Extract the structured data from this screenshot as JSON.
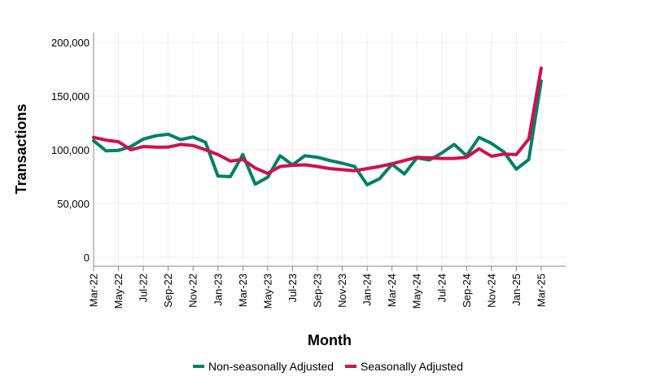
{
  "chart_data": {
    "type": "line",
    "xlabel": "Month",
    "ylabel": "Transactions",
    "ylim": [
      0,
      200000
    ],
    "y_ticks": [
      0,
      50000,
      100000,
      150000,
      200000
    ],
    "y_tick_labels": [
      "0",
      "50,000",
      "100,000",
      "150,000",
      "200,000"
    ],
    "x": [
      "Mar-22",
      "Apr-22",
      "May-22",
      "Jun-22",
      "Jul-22",
      "Aug-22",
      "Sep-22",
      "Oct-22",
      "Nov-22",
      "Dec-22",
      "Jan-23",
      "Feb-23",
      "Mar-23",
      "Apr-23",
      "May-23",
      "Jun-23",
      "Jul-23",
      "Aug-23",
      "Sep-23",
      "Oct-23",
      "Nov-23",
      "Dec-23",
      "Jan-24",
      "Feb-24",
      "Mar-24",
      "Apr-24",
      "May-24",
      "Jun-24",
      "Jul-24",
      "Aug-24",
      "Sep-24",
      "Oct-24",
      "Nov-24",
      "Dec-24",
      "Jan-25",
      "Feb-25",
      "Mar-25"
    ],
    "x_tick_labels": [
      "Mar-22",
      "May-22",
      "Jul-22",
      "Sep-22",
      "Nov-22",
      "Jan-23",
      "Mar-23",
      "May-23",
      "Jul-23",
      "Sep-23",
      "Nov-23",
      "Jan-24",
      "Mar-24",
      "May-24",
      "Jul-24",
      "Sep-24",
      "Nov-24",
      "Jan-25",
      "Mar-25"
    ],
    "grid": true,
    "legend_position": "bottom",
    "series": [
      {
        "name": "Non-seasonally Adjusted",
        "color": "#00806a",
        "values": [
          108500,
          99000,
          99500,
          103000,
          110000,
          113000,
          114500,
          109500,
          112000,
          107000,
          75500,
          75000,
          95500,
          68000,
          74500,
          94500,
          86000,
          94500,
          93000,
          90000,
          87500,
          84500,
          67500,
          73000,
          86500,
          77500,
          92500,
          90500,
          97000,
          105000,
          94500,
          111500,
          106000,
          98000,
          82000,
          91000,
          164000
        ]
      },
      {
        "name": "Seasonally Adjusted",
        "color": "#d0104c",
        "values": [
          111500,
          109000,
          107500,
          100000,
          103000,
          102500,
          102500,
          105000,
          104000,
          100000,
          95500,
          89500,
          91000,
          83000,
          78000,
          84500,
          85500,
          86000,
          84500,
          82500,
          81500,
          80500,
          82500,
          84500,
          87000,
          90000,
          93000,
          92500,
          92000,
          92000,
          93000,
          101000,
          94000,
          96000,
          95500,
          110000,
          176000
        ]
      }
    ]
  }
}
